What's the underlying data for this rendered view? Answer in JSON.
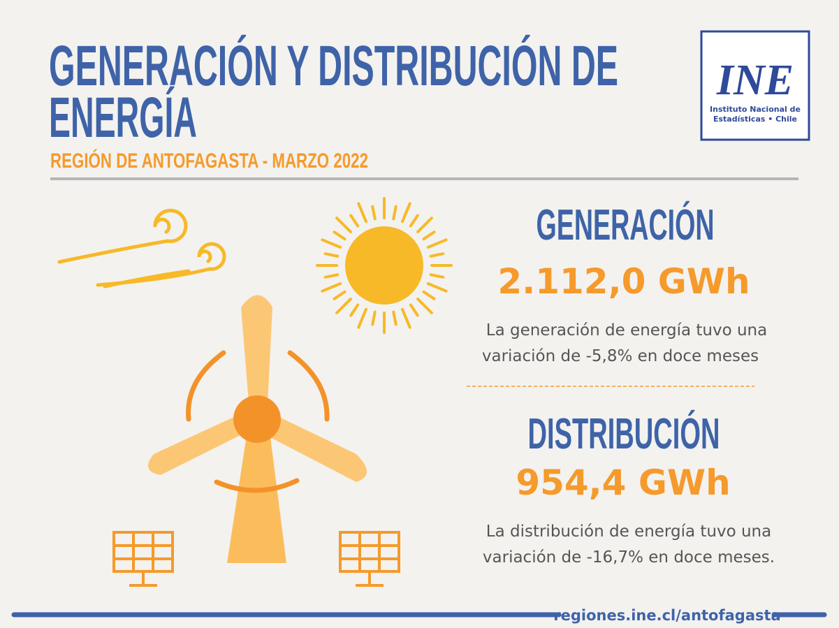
{
  "header": {
    "title": [
      "GENERACIÓN Y DISTRIBUCIÓN DE",
      "ENERGÍA"
    ],
    "subtitle": "REGIÓN DE ANTOFAGASTA - MARZO 2022"
  },
  "logo": {
    "mark": "INE",
    "lines": [
      "Instituto Nacional de",
      "Estadísticas • Chile"
    ]
  },
  "generation": {
    "heading": "GENERACIÓN",
    "value": "2.112,0 GWh",
    "description": [
      "La generación de energía tuvo una",
      "variación de -5,8% en doce meses"
    ]
  },
  "distribution": {
    "heading": "DISTRIBUCIÓN",
    "value": "954,4 GWh",
    "description": [
      "La distribución de energía tuvo una",
      "variación de  -16,7% en doce meses."
    ]
  },
  "footer": {
    "url": "regiones.ine.cl/antofagasta"
  }
}
